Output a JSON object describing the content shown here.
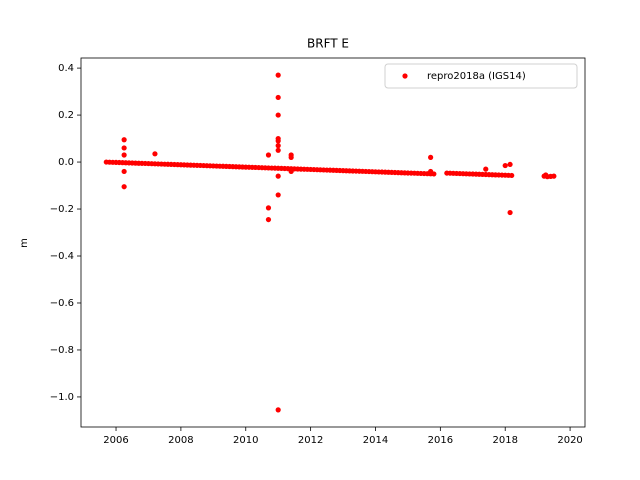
{
  "chart_data": {
    "type": "scatter",
    "title": "BRFT E",
    "ylabel": "m",
    "xlim": [
      2004.92,
      2020.46
    ],
    "ylim": [
      -1.128,
      0.443
    ],
    "xticks": [
      2006,
      2008,
      2010,
      2012,
      2014,
      2016,
      2018,
      2020
    ],
    "yticks": [
      0.4,
      0.2,
      {
        "value": 0,
        "label": "0.0"
      },
      {
        "value": -0.2,
        "label": "−0.2"
      },
      {
        "value": -0.4,
        "label": "−0.4"
      },
      {
        "value": -0.6,
        "label": "−0.6"
      },
      {
        "value": -0.8,
        "label": "−0.8"
      },
      {
        "value": -1,
        "label": "−1.0"
      }
    ],
    "legend_position": "upper right",
    "series": [
      {
        "name": "repro2018a (IGS14)",
        "color": "#ff0000",
        "x": [
          2005.7,
          2005.8,
          2005.9,
          2006.0,
          2006.1,
          2006.2,
          2006.3,
          2006.4,
          2006.5,
          2006.6,
          2006.7,
          2006.8,
          2006.9,
          2007.0,
          2007.1,
          2007.2,
          2007.3,
          2007.4,
          2007.5,
          2007.6,
          2007.7,
          2007.8,
          2007.9,
          2008.0,
          2008.1,
          2008.2,
          2008.3,
          2008.4,
          2008.5,
          2008.6,
          2008.7,
          2008.8,
          2008.9,
          2009.0,
          2009.1,
          2009.2,
          2009.3,
          2009.4,
          2009.5,
          2009.6,
          2009.7,
          2009.8,
          2009.9,
          2010.0,
          2010.1,
          2010.2,
          2010.3,
          2010.4,
          2010.5,
          2010.6,
          2010.7,
          2010.8,
          2010.9,
          2011.0,
          2011.1,
          2011.2,
          2011.3,
          2011.4,
          2011.5,
          2011.6,
          2011.7,
          2011.8,
          2011.9,
          2012.0,
          2012.1,
          2012.2,
          2012.3,
          2012.4,
          2012.5,
          2012.6,
          2012.7,
          2012.8,
          2012.9,
          2013.0,
          2013.1,
          2013.2,
          2013.3,
          2013.4,
          2013.5,
          2013.6,
          2013.7,
          2013.8,
          2013.9,
          2014.0,
          2014.1,
          2014.2,
          2014.3,
          2014.4,
          2014.5,
          2014.6,
          2014.7,
          2014.8,
          2014.9,
          2015.0,
          2015.1,
          2015.2,
          2015.3,
          2015.4,
          2015.5,
          2015.6,
          2015.7,
          2015.8,
          2016.2,
          2016.3,
          2016.4,
          2016.5,
          2016.6,
          2016.7,
          2016.8,
          2016.9,
          2017.0,
          2017.1,
          2017.2,
          2017.3,
          2017.4,
          2017.5,
          2017.6,
          2017.7,
          2017.8,
          2017.9,
          2018.0,
          2018.1,
          2018.2,
          2019.2,
          2019.3,
          2019.4,
          2019.5,
          2006.25,
          2006.25,
          2006.25,
          2006.25,
          2006.25,
          2007.2,
          2010.7,
          2010.7,
          2010.7,
          2011.0,
          2011.0,
          2011.0,
          2011.0,
          2011.0,
          2011.0,
          2011.0,
          2011.0,
          2011.0,
          2011.0,
          2011.4,
          2011.4,
          2011.4,
          2015.7,
          2015.7,
          2017.4,
          2018.0,
          2018.15,
          2018.15,
          2019.25
        ],
        "values": [
          0,
          -0.0005,
          -0.001,
          -0.0015,
          -0.002,
          -0.0025,
          -0.003,
          -0.0035,
          -0.004,
          -0.0045,
          -0.005,
          -0.0055,
          -0.006,
          -0.0065,
          -0.007,
          -0.0075,
          -0.008,
          -0.0085,
          -0.009,
          -0.0095,
          -0.01,
          -0.0105,
          -0.011,
          -0.0115,
          -0.012,
          -0.0125,
          -0.013,
          -0.0135,
          -0.014,
          -0.0145,
          -0.015,
          -0.0155,
          -0.016,
          -0.0165,
          -0.017,
          -0.0175,
          -0.018,
          -0.0185,
          -0.019,
          -0.0195,
          -0.02,
          -0.0205,
          -0.021,
          -0.0215,
          -0.022,
          -0.0225,
          -0.023,
          -0.0235,
          -0.024,
          -0.0245,
          -0.025,
          -0.0255,
          -0.026,
          -0.0265,
          -0.027,
          -0.0275,
          -0.028,
          -0.0285,
          -0.029,
          -0.0295,
          -0.03,
          -0.0305,
          -0.031,
          -0.0315,
          -0.032,
          -0.0325,
          -0.033,
          -0.0335,
          -0.034,
          -0.0345,
          -0.035,
          -0.0355,
          -0.036,
          -0.0365,
          -0.037,
          -0.0375,
          -0.038,
          -0.0385,
          -0.039,
          -0.0395,
          -0.04,
          -0.0405,
          -0.041,
          -0.0415,
          -0.042,
          -0.0425,
          -0.043,
          -0.0435,
          -0.044,
          -0.0445,
          -0.045,
          -0.0455,
          -0.046,
          -0.0465,
          -0.047,
          -0.0475,
          -0.048,
          -0.0485,
          -0.049,
          -0.0495,
          -0.05,
          -0.0505,
          -0.047,
          -0.0475,
          -0.048,
          -0.0485,
          -0.049,
          -0.0495,
          -0.05,
          -0.0505,
          -0.051,
          -0.0515,
          -0.052,
          -0.0525,
          -0.053,
          -0.0535,
          -0.054,
          -0.0545,
          -0.055,
          -0.0555,
          -0.056,
          -0.0565,
          -0.057,
          -0.06,
          -0.062,
          -0.061,
          -0.06,
          0.095,
          0.06,
          0.03,
          -0.04,
          -0.105,
          0.035,
          0.03,
          -0.195,
          -0.245,
          0.37,
          0.275,
          0.2,
          0.1,
          0.09,
          0.07,
          0.05,
          -0.06,
          -0.14,
          -1.055,
          0.03,
          0.02,
          -0.04,
          0.02,
          -0.04,
          -0.03,
          -0.015,
          -0.01,
          -0.215,
          -0.055
        ]
      }
    ]
  }
}
